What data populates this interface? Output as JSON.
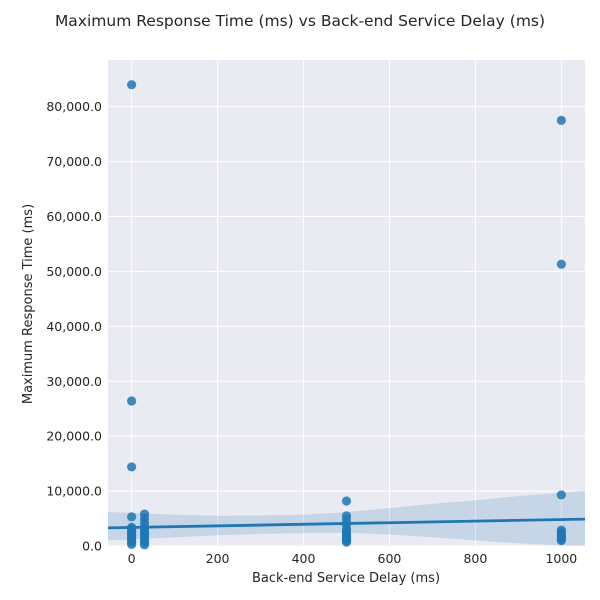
{
  "chart_data": {
    "type": "scatter",
    "title": "Maximum Response Time (ms) vs Back-end Service Delay (ms)",
    "xlabel": "Back-end Service Delay (ms)",
    "ylabel": "Maximum Response Time (ms)",
    "xlim": [
      -55,
      1055
    ],
    "ylim": [
      0,
      88500
    ],
    "x_ticks": [
      0,
      200,
      400,
      600,
      800,
      1000
    ],
    "x_tick_labels": [
      "0",
      "200",
      "400",
      "600",
      "800",
      "1000"
    ],
    "y_ticks": [
      0,
      10000,
      20000,
      30000,
      40000,
      50000,
      60000,
      70000,
      80000
    ],
    "y_tick_labels": [
      "0.0",
      "10,000.0",
      "20,000.0",
      "30,000.0",
      "40,000.0",
      "50,000.0",
      "60,000.0",
      "70,000.0",
      "80,000.0"
    ],
    "grid": true,
    "background_color": "#eaeaf2",
    "point_color": "#1f77b4",
    "regression": {
      "x": [
        -55,
        1055
      ],
      "y": [
        3300,
        4900
      ],
      "ci_x": [
        -55,
        100,
        200,
        300,
        400,
        500,
        600,
        700,
        800,
        900,
        1000,
        1055
      ],
      "ci_upper": [
        6200,
        5700,
        5500,
        5550,
        5700,
        6200,
        6900,
        7700,
        8300,
        9100,
        9700,
        10100
      ],
      "ci_lower": [
        1000,
        1600,
        1950,
        2200,
        2350,
        2400,
        2100,
        1600,
        1000,
        500,
        100,
        -500
      ]
    },
    "points": [
      {
        "x": 0,
        "y": 84000
      },
      {
        "x": 0,
        "y": 26400
      },
      {
        "x": 0,
        "y": 14400
      },
      {
        "x": 0,
        "y": 5300
      },
      {
        "x": 0,
        "y": 3400
      },
      {
        "x": 0,
        "y": 3100
      },
      {
        "x": 0,
        "y": 2800
      },
      {
        "x": 0,
        "y": 2500
      },
      {
        "x": 0,
        "y": 2200
      },
      {
        "x": 0,
        "y": 1900
      },
      {
        "x": 0,
        "y": 1600
      },
      {
        "x": 0,
        "y": 1300
      },
      {
        "x": 0,
        "y": 1000
      },
      {
        "x": 0,
        "y": 700
      },
      {
        "x": 0,
        "y": 300
      },
      {
        "x": 30,
        "y": 5800
      },
      {
        "x": 30,
        "y": 5000
      },
      {
        "x": 30,
        "y": 4200
      },
      {
        "x": 30,
        "y": 3500
      },
      {
        "x": 30,
        "y": 3000
      },
      {
        "x": 30,
        "y": 2600
      },
      {
        "x": 30,
        "y": 2200
      },
      {
        "x": 30,
        "y": 1800
      },
      {
        "x": 30,
        "y": 1400
      },
      {
        "x": 30,
        "y": 1000
      },
      {
        "x": 30,
        "y": 600
      },
      {
        "x": 30,
        "y": 200
      },
      {
        "x": 500,
        "y": 8200
      },
      {
        "x": 500,
        "y": 5500
      },
      {
        "x": 500,
        "y": 4800
      },
      {
        "x": 500,
        "y": 3900
      },
      {
        "x": 500,
        "y": 3100
      },
      {
        "x": 500,
        "y": 2700
      },
      {
        "x": 500,
        "y": 2300
      },
      {
        "x": 500,
        "y": 1900
      },
      {
        "x": 500,
        "y": 1600
      },
      {
        "x": 500,
        "y": 1300
      },
      {
        "x": 500,
        "y": 1000
      },
      {
        "x": 500,
        "y": 700
      },
      {
        "x": 1000,
        "y": 77500
      },
      {
        "x": 1000,
        "y": 51300
      },
      {
        "x": 1000,
        "y": 9300
      },
      {
        "x": 1000,
        "y": 2900
      },
      {
        "x": 1000,
        "y": 2500
      },
      {
        "x": 1000,
        "y": 2100
      },
      {
        "x": 1000,
        "y": 1800
      },
      {
        "x": 1000,
        "y": 1500
      },
      {
        "x": 1000,
        "y": 1200
      },
      {
        "x": 1000,
        "y": 1000
      }
    ]
  }
}
